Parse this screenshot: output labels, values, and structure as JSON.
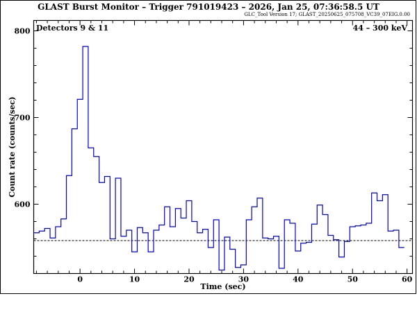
{
  "chart_data": {
    "type": "line",
    "step": true,
    "title": "GLAST Burst Monitor  –  Trigger 791019423  –  2026, Jan 25, 07:36:58.5 UT",
    "subtitle": "GLC_Tool Version 17; GLAST_20250625_075708_VC39_07EIG.0.00",
    "xlabel": "Time (sec)",
    "ylabel": "Count rate (counts/sec)",
    "annotation_left": "Detectors 9 & 11",
    "annotation_right": "44 – 300 keV",
    "xlim": [
      -8.5,
      61
    ],
    "ylim": [
      520,
      812
    ],
    "x_ticks": [
      0,
      10,
      20,
      30,
      40,
      50,
      60
    ],
    "x_tick_labels": [
      "0",
      "10",
      "20",
      "30",
      "40",
      "50",
      "60"
    ],
    "y_ticks": [
      600,
      700,
      800
    ],
    "y_tick_labels": [
      "600",
      "700",
      "800"
    ],
    "background_level": 558,
    "series": [
      {
        "bin_width": 1,
        "x_start": -8.5,
        "values": [
          567,
          569,
          572,
          561,
          574,
          583,
          633,
          687,
          721,
          782,
          665,
          655,
          625,
          632,
          560,
          630,
          563,
          570,
          545,
          573,
          567,
          545,
          570,
          576,
          597,
          574,
          595,
          584,
          604,
          580,
          567,
          571,
          550,
          582,
          524,
          562,
          548,
          527,
          530,
          582,
          597,
          607,
          561,
          560,
          563,
          526,
          582,
          578,
          546,
          555,
          556,
          577,
          599,
          588,
          564,
          559,
          539,
          557,
          574,
          575,
          576,
          578,
          613,
          604,
          611,
          569,
          570,
          550
        ]
      }
    ],
    "line_color": "#0000cc",
    "background_line_style": "dashed",
    "grid": false
  }
}
